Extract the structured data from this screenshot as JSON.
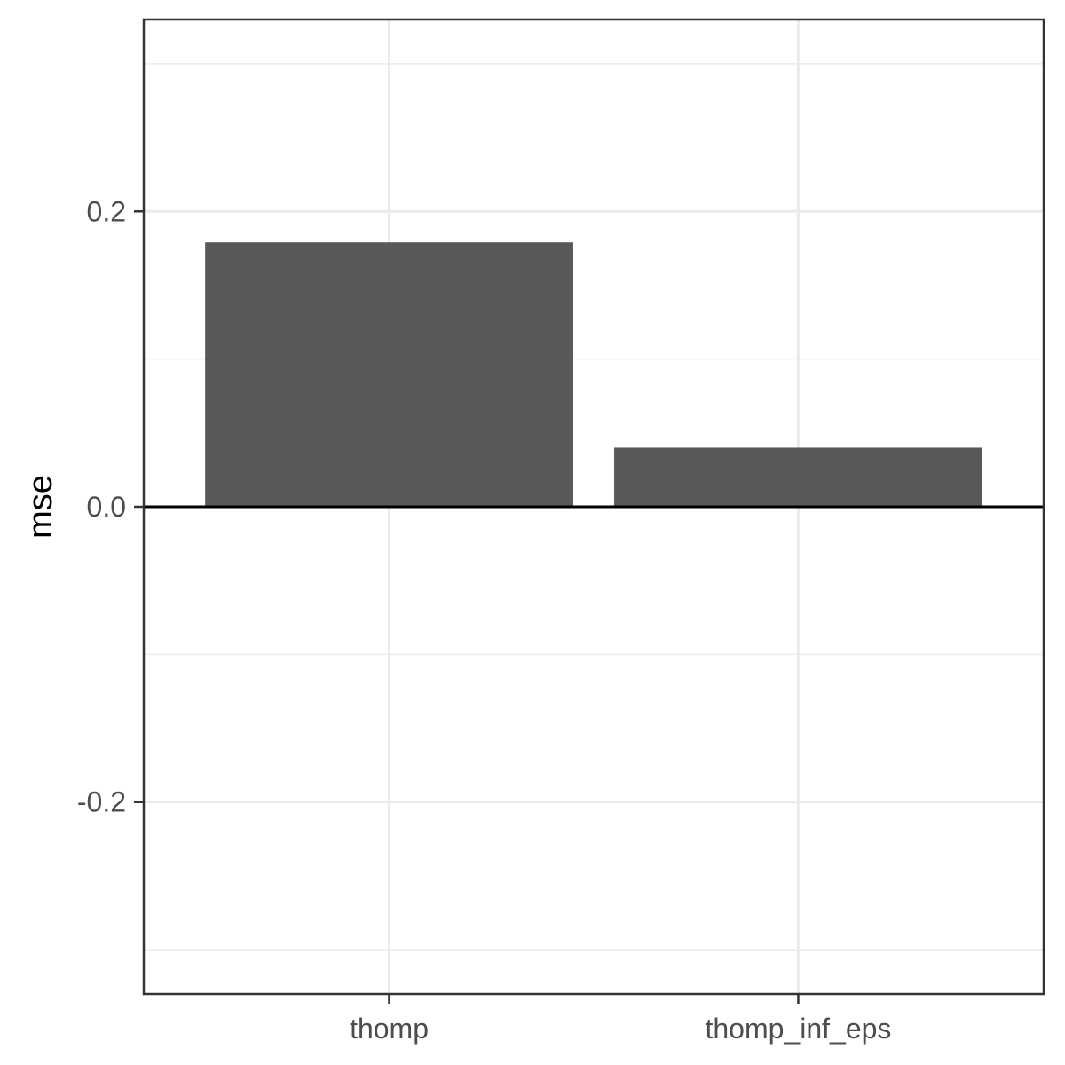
{
  "chart_data": {
    "type": "bar",
    "categories": [
      "thomp",
      "thomp_inf_eps"
    ],
    "values": [
      0.179,
      0.04
    ],
    "title": "",
    "xlabel": "",
    "ylabel": "mse",
    "ylim": [
      -0.33,
      0.33
    ],
    "y_ticks": [
      -0.2,
      0.0,
      0.2
    ],
    "y_tick_labels": [
      "-0.2",
      "0.0",
      "0.2"
    ],
    "y_minor_ticks": [
      -0.3,
      -0.1,
      0.1,
      0.3
    ],
    "grid": true,
    "reference_line_y": 0.0,
    "legend": "none",
    "colors": {
      "bar": "#595959",
      "grid": "#ebebeb",
      "panel_border": "#333333",
      "reference_line": "#000000"
    }
  }
}
